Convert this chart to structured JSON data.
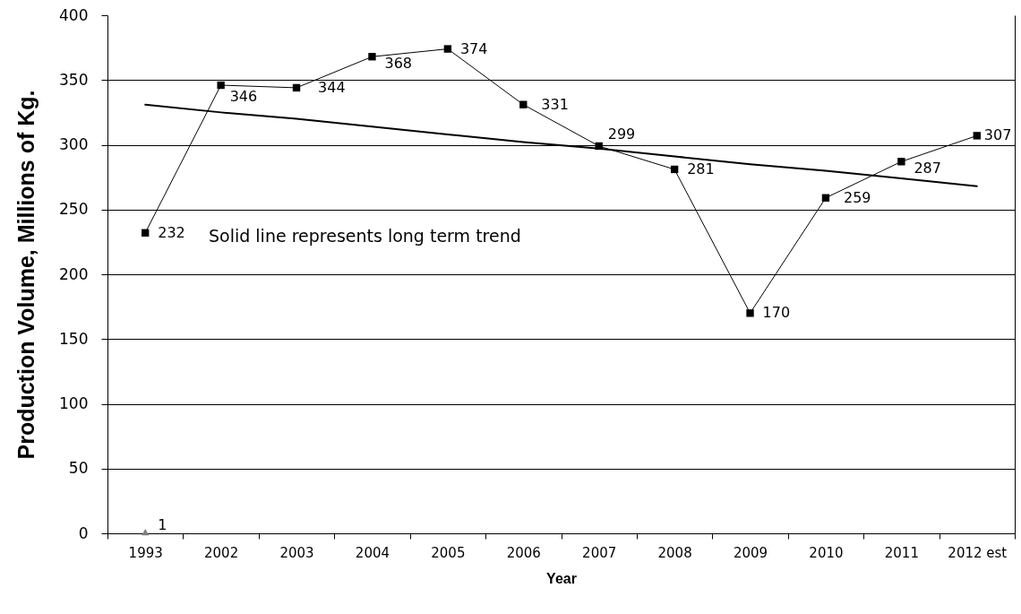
{
  "chart_data": {
    "type": "line",
    "xlabel": "Year",
    "ylabel": "Production Volume, Millions of Kg.",
    "annotations": [
      "Solid line represents long term trend"
    ],
    "categories": [
      "1993",
      "2002",
      "2003",
      "2004",
      "2005",
      "2006",
      "2007",
      "2008",
      "2009",
      "2010",
      "2011",
      "2012 est"
    ],
    "series": [
      {
        "color": "#000000",
        "values": [
          232,
          346,
          344,
          368,
          374,
          331,
          299,
          281,
          170,
          259,
          287,
          307
        ],
        "value_labels": [
          "232",
          "346",
          "344",
          "368",
          "374",
          "331",
          "299",
          "281",
          "170",
          "259",
          "287",
          "307"
        ]
      },
      {
        "type": "scatter",
        "marker": "triangle",
        "color": "#808080",
        "values": [
          1,
          null,
          null,
          null,
          null,
          null,
          null,
          null,
          null,
          null,
          null,
          null
        ],
        "value_labels": [
          "1",
          null,
          null,
          null,
          null,
          null,
          null,
          null,
          null,
          null,
          null,
          null
        ]
      },
      {
        "type": "line",
        "marker": "none",
        "values": [
          331,
          325,
          320,
          314,
          308,
          302,
          297,
          291,
          285,
          280,
          274,
          268
        ],
        "color": "#000000"
      }
    ],
    "ylim": [
      0,
      400
    ],
    "yticks": [
      0,
      50,
      100,
      150,
      200,
      250,
      300,
      350,
      400
    ],
    "grid": "y",
    "marker": "square"
  }
}
